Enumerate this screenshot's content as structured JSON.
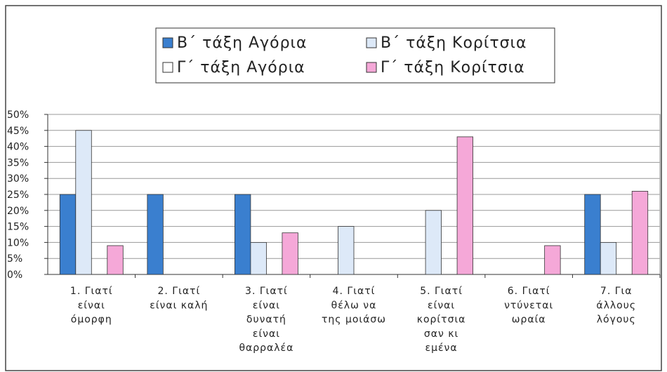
{
  "chart_data": {
    "type": "bar",
    "categories": [
      "1. Γιατί\nείναι\nόμορφη",
      "2. Γιατί\nείναι καλή",
      "3. Γιατί\nείναι\nδυνατή\nείναι\nθαρραλέα",
      "4. Γιατί\nθέλω να\nτης μοιάσω",
      "5. Γιατί\nείναι\nκορίτσια\nσαν κι\nεμένα",
      "6. Γιατί\nντύνεται\nωραία",
      "7. Για\nάλλους\nλόγους"
    ],
    "series": [
      {
        "name": "Β΄ τάξη Αγόρια",
        "color": "#3a7fcf",
        "values": [
          25,
          25,
          25,
          0,
          0,
          0,
          25
        ]
      },
      {
        "name": "Β΄ τάξη Κορίτσια",
        "color": "#dde9f8",
        "values": [
          45,
          0,
          10,
          15,
          20,
          0,
          10
        ]
      },
      {
        "name": "Γ΄ τάξη Αγόρια",
        "color": "#ffffff",
        "values": [
          0,
          0,
          0,
          0,
          0,
          0,
          0
        ]
      },
      {
        "name": "Γ΄ τάξη Κορίτσια",
        "color": "#f5a8d8",
        "values": [
          9,
          0,
          13,
          0,
          43,
          9,
          26
        ]
      }
    ],
    "ylim": [
      0,
      50
    ],
    "yticks": [
      {
        "value": 0,
        "label": "0%"
      },
      {
        "value": 5,
        "label": "5%"
      },
      {
        "value": 10,
        "label": "10%"
      },
      {
        "value": 15,
        "label": "15%"
      },
      {
        "value": 20,
        "label": "20%"
      },
      {
        "value": 25,
        "label": "25%"
      },
      {
        "value": 30,
        "label": "30%"
      },
      {
        "value": 35,
        "label": "35%"
      },
      {
        "value": 40,
        "label": "40%"
      },
      {
        "value": 45,
        "label": "45%"
      },
      {
        "value": 50,
        "label": "50%"
      }
    ],
    "grid": true
  }
}
